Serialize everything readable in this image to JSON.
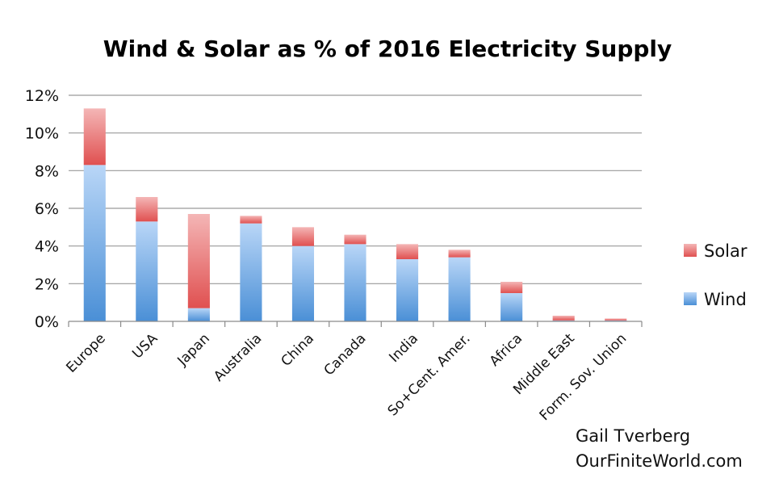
{
  "chart_data": {
    "type": "bar",
    "stacked": true,
    "title": "Wind & Solar as % of 2016 Electricity Supply",
    "categories": [
      "Europe",
      "USA",
      "Japan",
      "Australia",
      "China",
      "Canada",
      "India",
      "So+Cent. Amer.",
      "Africa",
      "Middle East",
      "Form. Sov. Union"
    ],
    "series": [
      {
        "name": "Wind",
        "color": "#5b9bd5",
        "values": [
          8.3,
          5.3,
          0.7,
          5.2,
          4.0,
          4.1,
          3.3,
          3.4,
          1.5,
          0.05,
          0.05
        ]
      },
      {
        "name": "Solar",
        "color": "#e15a5a",
        "values": [
          3.0,
          1.3,
          5.0,
          0.4,
          1.0,
          0.5,
          0.8,
          0.4,
          0.6,
          0.25,
          0.1
        ]
      }
    ],
    "ylim": [
      0,
      12
    ],
    "yticks": [
      "0%",
      "2%",
      "4%",
      "6%",
      "8%",
      "10%",
      "12%"
    ],
    "grid": true,
    "legend_position": "right",
    "legend": [
      {
        "name": "Solar",
        "color": "#e15a5a"
      },
      {
        "name": "Wind",
        "color": "#5b9bd5"
      }
    ]
  },
  "credit": {
    "author": "Gail Tverberg",
    "site": "OurFiniteWorld.com"
  }
}
